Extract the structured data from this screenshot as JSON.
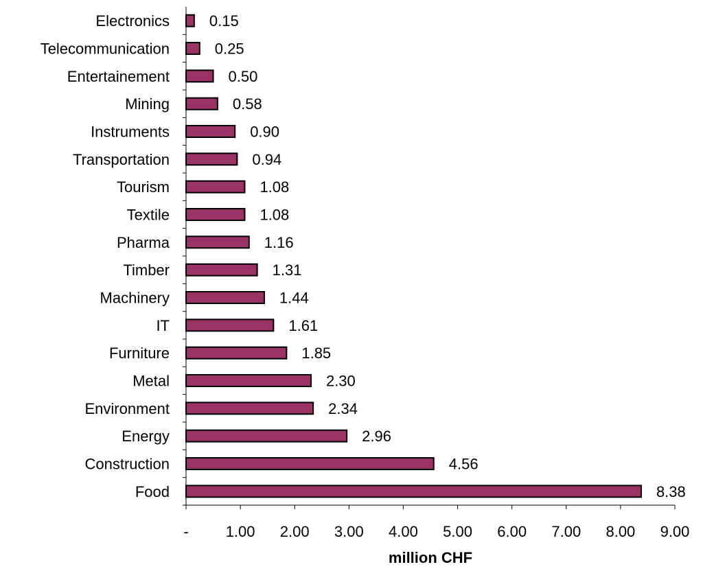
{
  "colors": {
    "bar_fill": "#993366",
    "bar_stroke": "#000000",
    "axis": "#000000"
  },
  "chart_data": {
    "type": "bar",
    "orientation": "horizontal",
    "categories": [
      "Food",
      "Construction",
      "Energy",
      "Environment",
      "Metal",
      "Furniture",
      "IT",
      "Machinery",
      "Timber",
      "Pharma",
      "Textile",
      "Tourism",
      "Transportation",
      "Instruments",
      "Mining",
      "Entertainement",
      "Telecommunication",
      "Electronics"
    ],
    "values": [
      8.38,
      4.56,
      2.96,
      2.34,
      2.3,
      1.85,
      1.61,
      1.44,
      1.31,
      1.16,
      1.08,
      1.08,
      0.94,
      0.9,
      0.58,
      0.5,
      0.25,
      0.15
    ],
    "value_labels": [
      "8.38",
      "4.56",
      "2.96",
      "2.34",
      "2.30",
      "1.85",
      "1.61",
      "1.44",
      "1.31",
      "1.16",
      "1.08",
      "1.08",
      "0.94",
      "0.90",
      "0.58",
      "0.50",
      "0.25",
      "0.15"
    ],
    "xlim": [
      0,
      9
    ],
    "x_ticks": [
      0,
      1,
      2,
      3,
      4,
      5,
      6,
      7,
      8,
      9
    ],
    "x_tick_labels": [
      "-",
      "1.00",
      "2.00",
      "3.00",
      "4.00",
      "5.00",
      "6.00",
      "7.00",
      "8.00",
      "9.00"
    ],
    "xlabel": "million CHF",
    "ylabel": "",
    "title": "",
    "grid": false,
    "legend": "none"
  }
}
